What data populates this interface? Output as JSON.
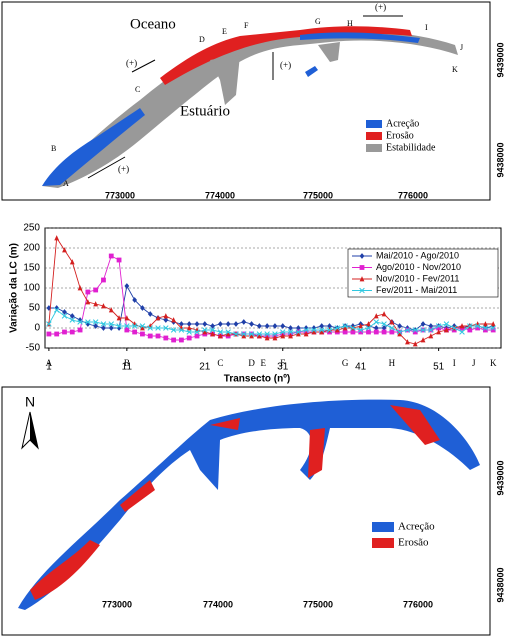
{
  "map_top": {
    "ocean_label": "Oceano",
    "estuary_label": "Estuário",
    "transect_labels": [
      "A",
      "B",
      "C",
      "D",
      "E",
      "F",
      "G",
      "H",
      "I",
      "J",
      "K"
    ],
    "direction_labels": [
      "(+)",
      "(+)",
      "(+)",
      "(+)"
    ],
    "x_ticks": [
      "773000",
      "774000",
      "775000",
      "776000"
    ],
    "y_ticks": [
      "9439000",
      "9438000"
    ],
    "legend": [
      "Acreção",
      "Erosão",
      "Estabilidade"
    ]
  },
  "chart_data": {
    "type": "line",
    "ylabel": "Variação da LC (m)",
    "xlabel": "Transecto (nº)",
    "x": [
      1,
      2,
      3,
      4,
      5,
      6,
      7,
      8,
      9,
      10,
      11,
      12,
      13,
      14,
      15,
      16,
      17,
      18,
      19,
      20,
      21,
      22,
      23,
      24,
      25,
      26,
      27,
      28,
      29,
      30,
      31,
      32,
      33,
      34,
      35,
      36,
      37,
      38,
      39,
      40,
      41,
      42,
      43,
      44,
      45,
      46,
      47,
      48,
      49,
      50,
      51,
      52,
      53,
      54,
      55,
      56,
      57,
      58
    ],
    "series": [
      {
        "name": "Mai/2010 - Ago/2010",
        "color": "#1f3fa8",
        "marker": "diamond",
        "values": [
          50,
          50,
          40,
          30,
          20,
          10,
          5,
          0,
          0,
          0,
          105,
          70,
          50,
          35,
          25,
          20,
          15,
          10,
          10,
          10,
          10,
          5,
          10,
          10,
          10,
          15,
          10,
          5,
          5,
          5,
          5,
          0,
          0,
          0,
          0,
          5,
          5,
          0,
          5,
          5,
          10,
          5,
          0,
          0,
          15,
          5,
          0,
          -5,
          10,
          5,
          5,
          0,
          5,
          0,
          5,
          5,
          0,
          5
        ]
      },
      {
        "name": "Ago/2010 - Nov/2010",
        "color": "#e020d0",
        "marker": "square",
        "values": [
          -15,
          -15,
          -10,
          -10,
          -5,
          90,
          95,
          120,
          180,
          170,
          -5,
          -10,
          -15,
          -20,
          -20,
          -25,
          -30,
          -30,
          -25,
          -20,
          -15,
          -15,
          -20,
          -20,
          -15,
          -15,
          -15,
          -20,
          -20,
          -20,
          -15,
          -15,
          -10,
          -10,
          -10,
          -10,
          -10,
          -10,
          -10,
          -10,
          -10,
          -10,
          -10,
          -10,
          -10,
          -10,
          -5,
          -10,
          -5,
          -5,
          0,
          -5,
          -5,
          0,
          -5,
          0,
          -5,
          -5
        ]
      },
      {
        "name": "Nov/2010 - Fev/2011",
        "color": "#d42020",
        "marker": "triangle",
        "values": [
          10,
          225,
          195,
          165,
          100,
          65,
          60,
          55,
          45,
          25,
          25,
          10,
          0,
          5,
          25,
          30,
          20,
          0,
          0,
          -5,
          -10,
          -15,
          -20,
          -15,
          -15,
          -20,
          -20,
          -20,
          -25,
          -25,
          -20,
          -20,
          -15,
          -15,
          -10,
          -10,
          -5,
          -5,
          0,
          0,
          5,
          10,
          30,
          35,
          15,
          -15,
          -35,
          -40,
          -30,
          -20,
          -10,
          -5,
          0,
          5,
          5,
          10,
          10,
          10
        ]
      },
      {
        "name": "Fev/2011 - Mai/2011",
        "color": "#30c8e0",
        "marker": "x",
        "values": [
          10,
          45,
          30,
          20,
          15,
          15,
          15,
          10,
          10,
          5,
          5,
          5,
          5,
          0,
          0,
          0,
          -5,
          -5,
          -10,
          -10,
          -5,
          -5,
          -10,
          -10,
          -15,
          -15,
          -15,
          -15,
          -15,
          -15,
          -10,
          -10,
          -10,
          -5,
          -5,
          -5,
          -5,
          0,
          5,
          0,
          -5,
          0,
          15,
          10,
          0,
          -10,
          -5,
          -5,
          -5,
          -5,
          5,
          10,
          0,
          -10,
          5,
          5,
          0,
          0
        ]
      }
    ],
    "xlim": [
      0.5,
      59
    ],
    "ylim": [
      -50,
      250
    ],
    "xticks": [
      1,
      11,
      21,
      31,
      41,
      51
    ],
    "yticks": [
      -50,
      0,
      50,
      100,
      150,
      200,
      250
    ],
    "grid": true,
    "legend": "upper right",
    "annotations": [
      {
        "text": "A",
        "x": 1
      },
      {
        "text": "B",
        "x": 11
      },
      {
        "text": "C",
        "x": 23
      },
      {
        "text": "D",
        "x": 27
      },
      {
        "text": "E",
        "x": 28.5
      },
      {
        "text": "F",
        "x": 31
      },
      {
        "text": "G",
        "x": 39
      },
      {
        "text": "H",
        "x": 45
      },
      {
        "text": "I",
        "x": 53
      },
      {
        "text": "J",
        "x": 55.5
      },
      {
        "text": "K",
        "x": 58
      }
    ]
  },
  "map_bottom": {
    "north_label": "N",
    "x_ticks": [
      "773000",
      "774000",
      "775000",
      "776000"
    ],
    "y_ticks": [
      "9439000",
      "9438000"
    ],
    "legend": [
      "Acreção",
      "Erosão"
    ]
  }
}
